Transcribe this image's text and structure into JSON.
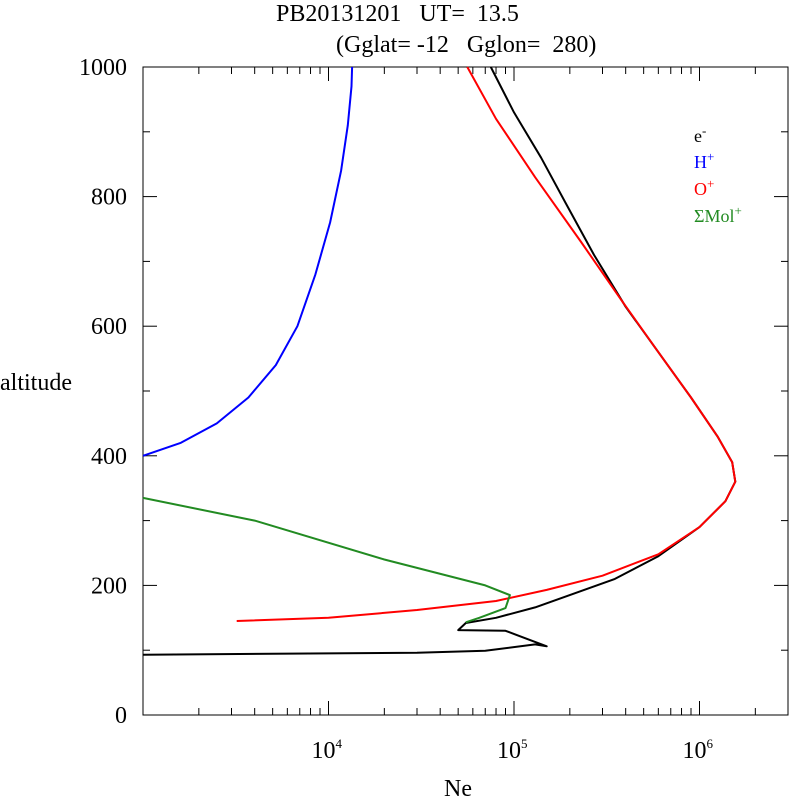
{
  "chart_data": {
    "type": "line",
    "title_line1": "PB20131201   UT=  13.5",
    "title_line2": "(Gglat= -12   Gglon=  280)",
    "xlabel": "Ne",
    "ylabel": "altitude",
    "xscale": "log",
    "xlim": [
      1000,
      3000000
    ],
    "ylim": [
      0,
      1000
    ],
    "x_ticks": [
      {
        "value": 10000,
        "base": "10",
        "exp": "4"
      },
      {
        "value": 100000,
        "base": "10",
        "exp": "5"
      },
      {
        "value": 1000000,
        "base": "10",
        "exp": "6"
      }
    ],
    "y_ticks": [
      {
        "value": 0,
        "label": "0"
      },
      {
        "value": 200,
        "label": "200"
      },
      {
        "value": 400,
        "label": "400"
      },
      {
        "value": 600,
        "label": "600"
      },
      {
        "value": 800,
        "label": "800"
      },
      {
        "value": 1000,
        "label": "1000"
      }
    ],
    "legend_position": "top-right",
    "series": [
      {
        "name_base": "e",
        "name_sup": "-",
        "color": "#000000",
        "points": [
          [
            1000,
            93
          ],
          [
            30000,
            96
          ],
          [
            70000,
            99
          ],
          [
            130000,
            109
          ],
          [
            150000,
            106
          ],
          [
            90000,
            130
          ],
          [
            50000,
            131
          ],
          [
            55000,
            142
          ],
          [
            80000,
            150
          ],
          [
            130000,
            166
          ],
          [
            200000,
            185
          ],
          [
            350000,
            210
          ],
          [
            600000,
            245
          ],
          [
            1000000,
            290
          ],
          [
            1380000,
            330
          ],
          [
            1560000,
            360
          ],
          [
            1500000,
            390
          ],
          [
            1250000,
            430
          ],
          [
            900000,
            490
          ],
          [
            600000,
            560
          ],
          [
            400000,
            630
          ],
          [
            270000,
            710
          ],
          [
            190000,
            790
          ],
          [
            140000,
            860
          ],
          [
            100000,
            930
          ],
          [
            75000,
            1000
          ]
        ]
      },
      {
        "name_base": "H",
        "name_sup": "+",
        "color": "#0000ff",
        "points": [
          [
            1000,
            400
          ],
          [
            1600,
            420
          ],
          [
            2500,
            450
          ],
          [
            3700,
            490
          ],
          [
            5200,
            540
          ],
          [
            6800,
            600
          ],
          [
            8500,
            680
          ],
          [
            10200,
            760
          ],
          [
            11700,
            840
          ],
          [
            12700,
            910
          ],
          [
            13300,
            970
          ],
          [
            13400,
            1000
          ]
        ]
      },
      {
        "name_base": "O",
        "name_sup": "+",
        "color": "#ff0000",
        "points": [
          [
            3200,
            145
          ],
          [
            10000,
            150
          ],
          [
            30000,
            162
          ],
          [
            80000,
            176
          ],
          [
            150000,
            193
          ],
          [
            300000,
            215
          ],
          [
            600000,
            248
          ],
          [
            1000000,
            290
          ],
          [
            1380000,
            330
          ],
          [
            1560000,
            360
          ],
          [
            1500000,
            390
          ],
          [
            1250000,
            430
          ],
          [
            900000,
            490
          ],
          [
            600000,
            560
          ],
          [
            380000,
            640
          ],
          [
            230000,
            730
          ],
          [
            130000,
            830
          ],
          [
            80000,
            920
          ],
          [
            56000,
            1000
          ]
        ]
      },
      {
        "name_base": "ΣMol",
        "name_sup": "+",
        "color": "#228b22",
        "points": [
          [
            1000,
            335
          ],
          [
            4000,
            300
          ],
          [
            20000,
            240
          ],
          [
            70000,
            200
          ],
          [
            95000,
            185
          ],
          [
            90000,
            165
          ],
          [
            65000,
            150
          ],
          [
            55000,
            143
          ]
        ]
      }
    ]
  }
}
